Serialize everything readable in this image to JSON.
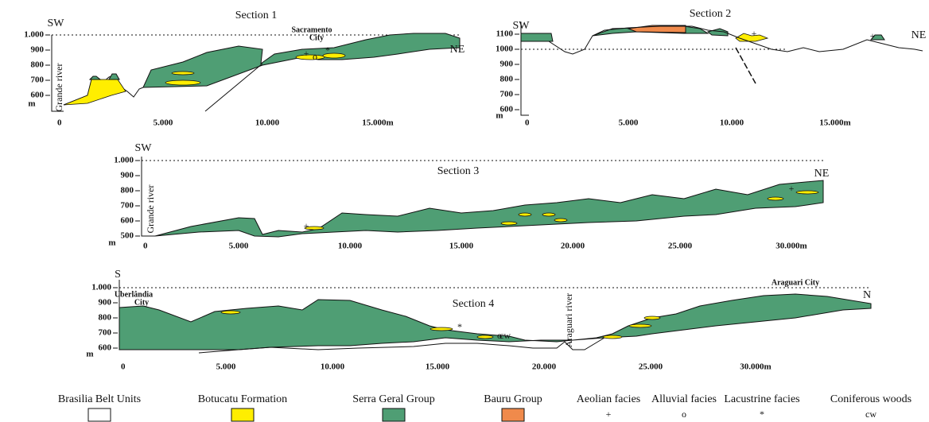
{
  "sections": [
    {
      "title": "Section 1",
      "left_label": "SW",
      "right_label": "NE",
      "y_ticks": [
        "1.000",
        "900",
        "800",
        "700",
        "600"
      ],
      "y_unit": "m",
      "x_ticks": [
        "0",
        "5.000",
        "10.000",
        "15.000m"
      ],
      "annotations": [
        "Grande river",
        "Sacramento",
        "City",
        "*",
        "+",
        "o"
      ]
    },
    {
      "title": "Section 2",
      "left_label": "SW",
      "right_label": "NE",
      "y_ticks": [
        "1100",
        "1000",
        "900",
        "800",
        "700",
        "600"
      ],
      "y_unit": "m",
      "x_ticks": [
        "0",
        "5.000",
        "10.000",
        "15.000m"
      ],
      "annotations": [
        "+",
        "+"
      ]
    },
    {
      "title": "Section 3",
      "left_label": "SW",
      "right_label": "NE",
      "y_ticks": [
        "1.000",
        "900",
        "800",
        "700",
        "600",
        "500"
      ],
      "y_unit": "m",
      "x_ticks": [
        "0",
        "5.000",
        "10.000",
        "15.000",
        "20.000",
        "25.000",
        "30.000m"
      ],
      "annotations": [
        "Grande river",
        "+",
        "+"
      ]
    },
    {
      "title": "Section 4",
      "left_label": "S",
      "right_label": "N",
      "y_ticks": [
        "1.000",
        "900",
        "800",
        "700",
        "600"
      ],
      "y_unit": "m",
      "x_ticks": [
        "0",
        "5.000",
        "10.000",
        "15.000",
        "20.000",
        "25.000",
        "30.000m"
      ],
      "annotations": [
        "Uberlândia",
        "City",
        "Araguari river",
        "Araguari City",
        "cw",
        "*",
        "o"
      ]
    }
  ],
  "legend": [
    {
      "label": "Brasilia Belt Units",
      "color": "#ffffff"
    },
    {
      "label": "Botucatu Formation",
      "color": "#ffee00"
    },
    {
      "label": "Serra Geral Group",
      "color": "#4f9e74"
    },
    {
      "label": "Bauru Group",
      "color": "#f08a4b"
    },
    {
      "label": "Aeolian facies",
      "symbol": "+"
    },
    {
      "label": "Alluvial facies",
      "symbol": "o"
    },
    {
      "label": "Lacustrine facies",
      "symbol": "*"
    },
    {
      "label": "Coniferous woods",
      "symbol": "cw"
    }
  ]
}
